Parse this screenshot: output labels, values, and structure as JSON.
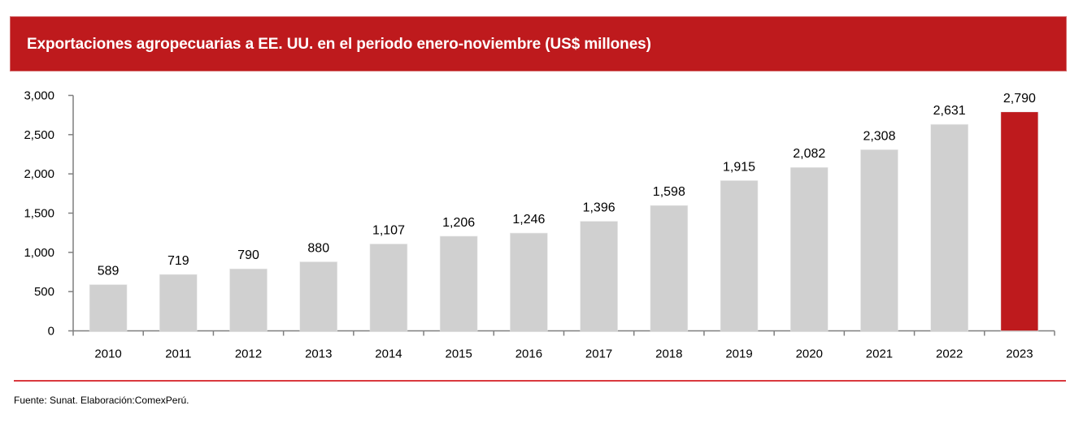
{
  "header": {
    "title": "Exportaciones agropecuarias a EE. UU. en el periodo enero-noviembre (US$ millones)"
  },
  "footer": {
    "source": "Fuente: Sunat. Elaboración:ComexPerú."
  },
  "colors": {
    "banner": "#be1a1d",
    "bar_default": "#d0d0d0",
    "bar_highlight": "#be1a1d",
    "axis": "#7f7f7f",
    "rule": "#d9393e"
  },
  "chart_data": {
    "type": "bar",
    "title": "Exportaciones agropecuarias a EE. UU. en el periodo enero-noviembre (US$ millones)",
    "xlabel": "",
    "ylabel": "",
    "categories": [
      "2010",
      "2011",
      "2012",
      "2013",
      "2014",
      "2015",
      "2016",
      "2017",
      "2018",
      "2019",
      "2020",
      "2021",
      "2022",
      "2023"
    ],
    "values": [
      589,
      719,
      790,
      880,
      1107,
      1206,
      1246,
      1396,
      1598,
      1915,
      2082,
      2308,
      2631,
      2790
    ],
    "data_labels": [
      "589",
      "719",
      "790",
      "880",
      "1,107",
      "1,206",
      "1,246",
      "1,396",
      "1,598",
      "1,915",
      "2,082",
      "2,308",
      "2,631",
      "2,790"
    ],
    "highlight_category": "2023",
    "ylim": [
      0,
      3000
    ],
    "yticks": [
      0,
      500,
      1000,
      1500,
      2000,
      2500,
      3000
    ],
    "ytick_labels": [
      "0",
      "500",
      "1,000",
      "1,500",
      "2,000",
      "2,500",
      "3,000"
    ],
    "grid": false,
    "legend": "none"
  }
}
